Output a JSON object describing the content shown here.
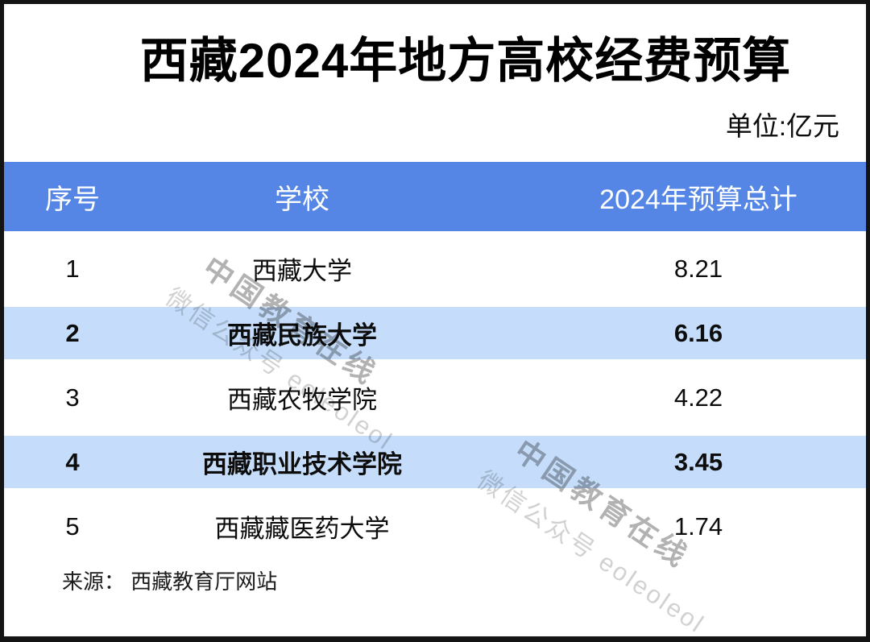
{
  "chart_data": {
    "type": "table",
    "title": "西藏2024年地方高校经费预算",
    "unit_label": "单位:亿元",
    "columns": {
      "index": "序号",
      "school": "学校",
      "budget": "2024年预算总计"
    },
    "rows": [
      {
        "index": "1",
        "school": "西藏大学",
        "budget": "8.21",
        "highlighted": false
      },
      {
        "index": "2",
        "school": "西藏民族大学",
        "budget": "6.16",
        "highlighted": true
      },
      {
        "index": "3",
        "school": "西藏农牧学院",
        "budget": "4.22",
        "highlighted": false
      },
      {
        "index": "4",
        "school": "西藏职业技术学院",
        "budget": "3.45",
        "highlighted": true
      },
      {
        "index": "5",
        "school": "西藏藏医药大学",
        "budget": "1.74",
        "highlighted": false
      }
    ],
    "source": "来源： 西藏教育厅网站"
  },
  "watermark": {
    "line1": "中国教育在线",
    "line2": "微信公众号 eoleoleol"
  },
  "colors": {
    "header_bg": "#5586e5",
    "header_text": "#ffffff",
    "highlight_row_bg": "#c5ddfa",
    "frame_border": "#141414",
    "body_text": "#0d0d0d",
    "watermark_line1": "#b3b3b3",
    "watermark_line2": "#d0d0d0"
  }
}
